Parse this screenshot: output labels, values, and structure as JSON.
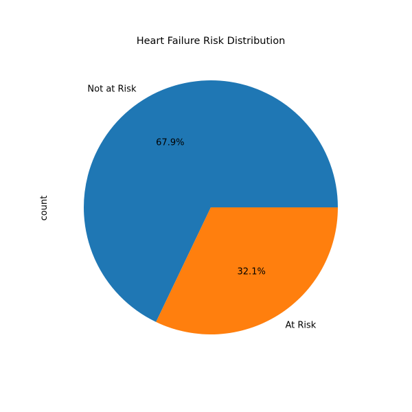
{
  "chart_data": {
    "type": "pie",
    "title": "Heart Failure Risk Distribution",
    "ylabel": "count",
    "categories": [
      "Not at Risk",
      "At Risk"
    ],
    "values": [
      67.9,
      32.1
    ],
    "value_labels": [
      "67.9%",
      "32.1%"
    ],
    "colors": [
      "#1f77b4",
      "#ff7f0e"
    ],
    "start_angle_deg": 0,
    "direction": "counterclockwise",
    "legend": false
  }
}
